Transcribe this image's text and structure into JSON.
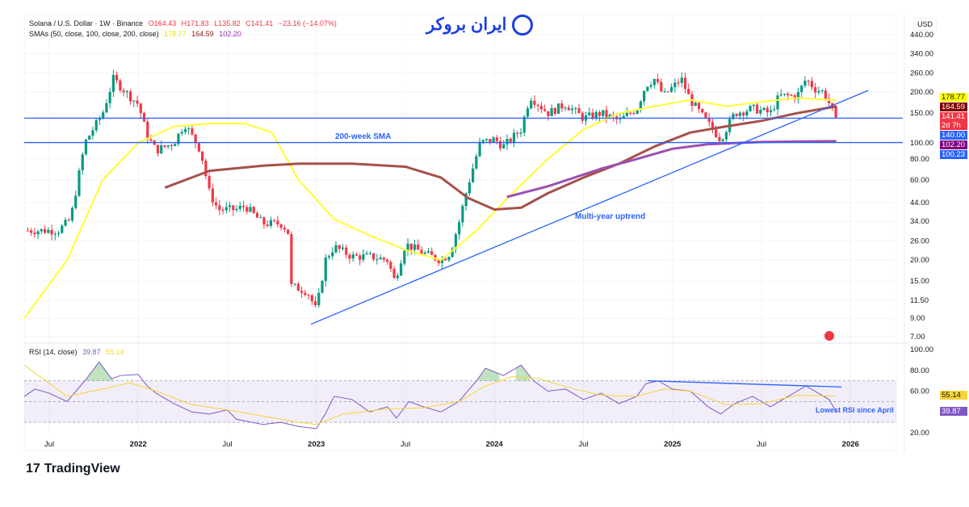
{
  "header": {
    "symbol": "Solana / U.S. Dollar · 1W · Binance",
    "open": "O164.43",
    "high": "H171.83",
    "low": "L135.82",
    "close": "C141.41",
    "change": "−23.16 (−14.07%)",
    "sma_label": "SMAs (50, close, 100, close, 200, close)",
    "sma50": "178.77",
    "sma100": "164.59",
    "sma200": "102.20",
    "rsi_label": "RSI (14, close)",
    "rsi": "39.87",
    "rsi_ma": "55.14"
  },
  "logo": {
    "text": "ایران بروکر"
  },
  "footer": {
    "brand": "TradingView"
  },
  "axis": {
    "currency": "USD"
  },
  "price_tags": [
    {
      "label": "178.77",
      "color": "#ffff00",
      "text_color": "#131722",
      "value": 178.77
    },
    {
      "label": "164.59",
      "color": "#800000",
      "text_color": "#ffffff",
      "value": 164.59
    },
    {
      "label": "141.41",
      "sub": "2d 7h",
      "color": "#f23645",
      "text_color": "#ffffff",
      "value": 141.41
    },
    {
      "label": "140.00",
      "color": "#2962ff",
      "text_color": "#ffffff",
      "value": 140
    },
    {
      "label": "102.20",
      "color": "#800080",
      "text_color": "#ffffff",
      "value": 102.2
    },
    {
      "label": "100.23",
      "color": "#2962ff",
      "text_color": "#ffffff",
      "value": 100.23
    }
  ],
  "rsi_tags": [
    {
      "label": "55.14",
      "color": "#f7d335",
      "text_color": "#131722"
    },
    {
      "label": "39.87",
      "color": "#7e57c2",
      "text_color": "#ffffff"
    }
  ],
  "annotations": {
    "sma200": "200-week SMA",
    "uptrend": "Multi-year uptrend",
    "rsi": "Lowest RSI since April"
  },
  "chart_data": [
    {
      "type": "candlestick",
      "title": "Solana / U.S. Dollar · 1W · Binance",
      "yscale": "log",
      "ylim": [
        7,
        440
      ],
      "y_ticks": [
        440,
        340,
        260,
        200,
        150,
        100,
        80,
        60,
        44,
        34,
        26,
        20,
        15,
        11.5,
        9,
        7
      ],
      "x_ticks": [
        {
          "t": 2021.5,
          "label": "Jul"
        },
        {
          "t": 2022,
          "label": "2022"
        },
        {
          "t": 2022.5,
          "label": "Jul"
        },
        {
          "t": 2023,
          "label": "2023"
        },
        {
          "t": 2023.5,
          "label": "Jul"
        },
        {
          "t": 2024,
          "label": "2024"
        },
        {
          "t": 2024.5,
          "label": "Jul"
        },
        {
          "t": 2025,
          "label": "2025"
        },
        {
          "t": 2025.5,
          "label": "Jul"
        },
        {
          "t": 2026,
          "label": "2026"
        }
      ],
      "price_path": [
        [
          2021.36,
          30
        ],
        [
          2021.55,
          30
        ],
        [
          2021.62,
          35
        ],
        [
          2021.7,
          100
        ],
        [
          2021.8,
          150
        ],
        [
          2021.86,
          240
        ],
        [
          2021.95,
          190
        ],
        [
          2022.0,
          170
        ],
        [
          2022.05,
          110
        ],
        [
          2022.1,
          90
        ],
        [
          2022.2,
          100
        ],
        [
          2022.26,
          130
        ],
        [
          2022.35,
          90
        ],
        [
          2022.4,
          50
        ],
        [
          2022.45,
          40
        ],
        [
          2022.55,
          40
        ],
        [
          2022.6,
          42
        ],
        [
          2022.7,
          33
        ],
        [
          2022.8,
          33
        ],
        [
          2022.84,
          30
        ],
        [
          2022.86,
          14
        ],
        [
          2022.95,
          13
        ],
        [
          2023.0,
          10
        ],
        [
          2023.05,
          20
        ],
        [
          2023.1,
          24
        ],
        [
          2023.2,
          21
        ],
        [
          2023.3,
          21
        ],
        [
          2023.4,
          20
        ],
        [
          2023.44,
          15
        ],
        [
          2023.5,
          25
        ],
        [
          2023.6,
          22
        ],
        [
          2023.7,
          20
        ],
        [
          2023.75,
          22
        ],
        [
          2023.8,
          33
        ],
        [
          2023.85,
          55
        ],
        [
          2023.92,
          100
        ],
        [
          2024.0,
          105
        ],
        [
          2024.05,
          95
        ],
        [
          2024.15,
          120
        ],
        [
          2024.2,
          190
        ],
        [
          2024.3,
          150
        ],
        [
          2024.4,
          170
        ],
        [
          2024.5,
          140
        ],
        [
          2024.6,
          150
        ],
        [
          2024.7,
          135
        ],
        [
          2024.8,
          160
        ],
        [
          2024.85,
          220
        ],
        [
          2024.9,
          240
        ],
        [
          2024.95,
          190
        ],
        [
          2025.05,
          240
        ],
        [
          2025.1,
          180
        ],
        [
          2025.2,
          130
        ],
        [
          2025.27,
          105
        ],
        [
          2025.35,
          150
        ],
        [
          2025.45,
          160
        ],
        [
          2025.55,
          150
        ],
        [
          2025.6,
          190
        ],
        [
          2025.7,
          190
        ],
        [
          2025.75,
          240
        ],
        [
          2025.8,
          210
        ],
        [
          2025.85,
          200
        ],
        [
          2025.89,
          164
        ],
        [
          2025.92,
          141.41
        ]
      ],
      "series": [
        {
          "name": "SMA 50",
          "color": "#ffff33",
          "values": [
            [
              2021.36,
              9
            ],
            [
              2021.6,
              20
            ],
            [
              2021.8,
              60
            ],
            [
              2022.0,
              100
            ],
            [
              2022.2,
              125
            ],
            [
              2022.4,
              130
            ],
            [
              2022.6,
              130
            ],
            [
              2022.75,
              115
            ],
            [
              2022.9,
              60
            ],
            [
              2023.1,
              35
            ],
            [
              2023.3,
              28
            ],
            [
              2023.5,
              23
            ],
            [
              2023.7,
              20
            ],
            [
              2023.9,
              30
            ],
            [
              2024.1,
              50
            ],
            [
              2024.3,
              80
            ],
            [
              2024.5,
              120
            ],
            [
              2024.7,
              150
            ],
            [
              2024.9,
              165
            ],
            [
              2025.1,
              180
            ],
            [
              2025.3,
              165
            ],
            [
              2025.5,
              175
            ],
            [
              2025.7,
              185
            ],
            [
              2025.92,
              178.77
            ]
          ]
        },
        {
          "name": "SMA 100",
          "color": "#a5514a",
          "values": [
            [
              2022.15,
              54
            ],
            [
              2022.4,
              68
            ],
            [
              2022.7,
              73
            ],
            [
              2022.9,
              75
            ],
            [
              2023.2,
              75
            ],
            [
              2023.5,
              72
            ],
            [
              2023.7,
              62
            ],
            [
              2023.85,
              47
            ],
            [
              2024.0,
              40
            ],
            [
              2024.15,
              41
            ],
            [
              2024.3,
              50
            ],
            [
              2024.5,
              62
            ],
            [
              2024.7,
              75
            ],
            [
              2024.9,
              95
            ],
            [
              2025.1,
              115
            ],
            [
              2025.3,
              125
            ],
            [
              2025.5,
              135
            ],
            [
              2025.7,
              150
            ],
            [
              2025.92,
              164.59
            ]
          ]
        },
        {
          "name": "SMA 200",
          "color": "#9c4fb0",
          "values": [
            [
              2024.07,
              47.5
            ],
            [
              2024.3,
              55
            ],
            [
              2024.6,
              70
            ],
            [
              2024.8,
              80
            ],
            [
              2025.0,
              92
            ],
            [
              2025.2,
              98
            ],
            [
              2025.5,
              101
            ],
            [
              2025.92,
              102.2
            ]
          ]
        }
      ],
      "hlines": [
        140,
        100.23
      ],
      "trendline": [
        [
          2022.97,
          8.3
        ],
        [
          2026.1,
          205
        ]
      ]
    },
    {
      "type": "line",
      "title": "RSI (14, close)",
      "ylim": [
        20,
        100
      ],
      "y_ticks": [
        100,
        80,
        60,
        20
      ],
      "band": [
        30,
        70
      ],
      "series": [
        {
          "name": "RSI",
          "color": "#7e57c2",
          "values": [
            [
              2021.36,
              55
            ],
            [
              2021.42,
              62
            ],
            [
              2021.5,
              58
            ],
            [
              2021.6,
              50
            ],
            [
              2021.7,
              70
            ],
            [
              2021.78,
              88
            ],
            [
              2021.85,
              72
            ],
            [
              2021.9,
              75
            ],
            [
              2022.0,
              76
            ],
            [
              2022.05,
              65
            ],
            [
              2022.1,
              58
            ],
            [
              2022.2,
              48
            ],
            [
              2022.3,
              40
            ],
            [
              2022.4,
              38
            ],
            [
              2022.5,
              42
            ],
            [
              2022.55,
              33
            ],
            [
              2022.7,
              28
            ],
            [
              2022.8,
              30
            ],
            [
              2022.9,
              26
            ],
            [
              2023.0,
              24
            ],
            [
              2023.05,
              38
            ],
            [
              2023.1,
              55
            ],
            [
              2023.2,
              52
            ],
            [
              2023.3,
              40
            ],
            [
              2023.4,
              45
            ],
            [
              2023.45,
              34
            ],
            [
              2023.52,
              50
            ],
            [
              2023.6,
              45
            ],
            [
              2023.7,
              40
            ],
            [
              2023.8,
              50
            ],
            [
              2023.9,
              70
            ],
            [
              2023.95,
              82
            ],
            [
              2024.05,
              75
            ],
            [
              2024.15,
              85
            ],
            [
              2024.22,
              70
            ],
            [
              2024.3,
              60
            ],
            [
              2024.4,
              62
            ],
            [
              2024.5,
              52
            ],
            [
              2024.6,
              58
            ],
            [
              2024.7,
              48
            ],
            [
              2024.8,
              55
            ],
            [
              2024.85,
              67
            ],
            [
              2024.92,
              70
            ],
            [
              2025.0,
              62
            ],
            [
              2025.1,
              60
            ],
            [
              2025.2,
              45
            ],
            [
              2025.27,
              38
            ],
            [
              2025.35,
              48
            ],
            [
              2025.45,
              55
            ],
            [
              2025.55,
              45
            ],
            [
              2025.65,
              55
            ],
            [
              2025.75,
              65
            ],
            [
              2025.82,
              58
            ],
            [
              2025.88,
              52
            ],
            [
              2025.92,
              39.87
            ]
          ]
        },
        {
          "name": "RSI MA",
          "color": "#f7d335",
          "values": [
            [
              2021.36,
              85
            ],
            [
              2021.6,
              55
            ],
            [
              2021.8,
              62
            ],
            [
              2021.95,
              68
            ],
            [
              2022.1,
              60
            ],
            [
              2022.3,
              47
            ],
            [
              2022.5,
              42
            ],
            [
              2022.7,
              36
            ],
            [
              2022.9,
              30
            ],
            [
              2023.0,
              28
            ],
            [
              2023.15,
              38
            ],
            [
              2023.4,
              43
            ],
            [
              2023.6,
              44
            ],
            [
              2023.8,
              50
            ],
            [
              2023.95,
              65
            ],
            [
              2024.1,
              74
            ],
            [
              2024.25,
              72
            ],
            [
              2024.45,
              62
            ],
            [
              2024.6,
              56
            ],
            [
              2024.8,
              55
            ],
            [
              2024.95,
              62
            ],
            [
              2025.1,
              60
            ],
            [
              2025.3,
              47
            ],
            [
              2025.5,
              48
            ],
            [
              2025.7,
              56
            ],
            [
              2025.92,
              55.14
            ]
          ]
        }
      ],
      "trendline": [
        [
          2024.86,
          70
        ],
        [
          2025.95,
          64
        ]
      ]
    }
  ]
}
